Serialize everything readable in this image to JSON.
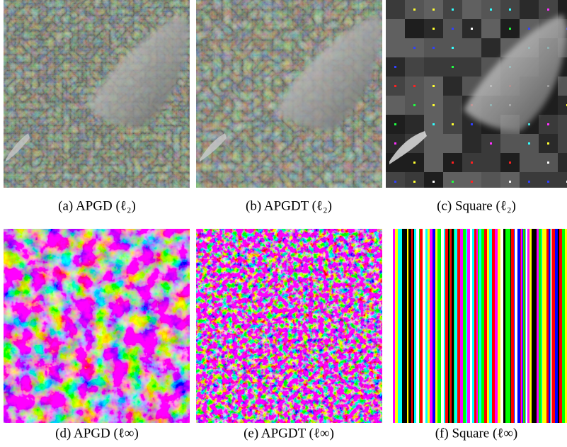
{
  "figures": [
    {
      "caption": "(a)  APGD (ℓ₂)"
    },
    {
      "caption": "(b)  APGDT (ℓ₂)"
    },
    {
      "caption": "(c)  Square (ℓ₂)"
    },
    {
      "caption": "(d)  APGD (ℓ∞)"
    },
    {
      "caption": "(e)  APGDT (ℓ∞)"
    },
    {
      "caption": "(f)  Square (ℓ∞)"
    }
  ]
}
